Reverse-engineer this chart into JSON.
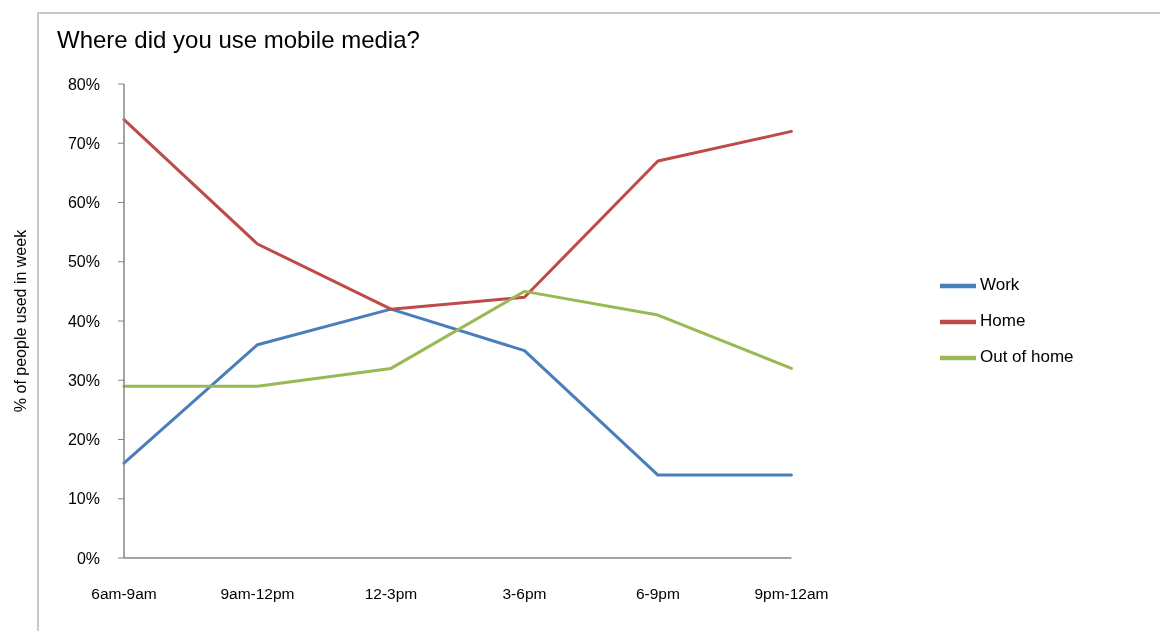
{
  "chart_data": {
    "type": "line",
    "title": "Where did you use mobile media?",
    "ylabel": "% of people used in week",
    "categories": [
      "6am-9am",
      "9am-12pm",
      "12-3pm",
      "3-6pm",
      "6-9pm",
      "9pm-12am"
    ],
    "series": [
      {
        "name": "Work",
        "color": "#4a7ebb",
        "values": [
          16,
          36,
          42,
          35,
          14,
          14
        ]
      },
      {
        "name": "Home",
        "color": "#be4b48",
        "values": [
          74,
          53,
          42,
          44,
          67,
          72
        ]
      },
      {
        "name": "Out of home",
        "color": "#98b954",
        "values": [
          29,
          29,
          32,
          45,
          41,
          32
        ]
      }
    ],
    "ylim": [
      0,
      80
    ],
    "yticks": [
      {
        "value": 0,
        "label": "0%"
      },
      {
        "value": 10,
        "label": "10%"
      },
      {
        "value": 20,
        "label": "20%"
      },
      {
        "value": 30,
        "label": "30%"
      },
      {
        "value": 40,
        "label": "40%"
      },
      {
        "value": 50,
        "label": "50%"
      },
      {
        "value": 60,
        "label": "60%"
      },
      {
        "value": 70,
        "label": "70%"
      },
      {
        "value": 80,
        "label": "80%"
      }
    ],
    "legend": "right",
    "marker": "none",
    "line_style": "solid"
  }
}
